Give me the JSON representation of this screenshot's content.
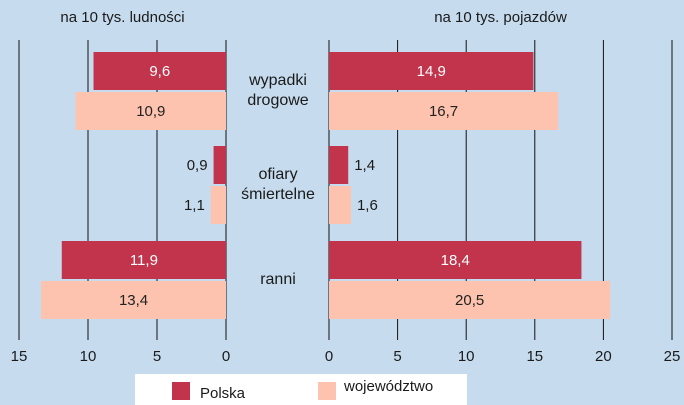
{
  "chart_data": {
    "type": "bar",
    "categories": [
      "wypadki drogowe",
      "ofiary śmiertelne",
      "ranni"
    ],
    "series": [
      {
        "name": "Polska",
        "color": "#c2344c",
        "label_color": "#ffffff"
      },
      {
        "name": "województwo",
        "color": "#fdc3ae",
        "label_color": "#222222"
      }
    ],
    "panels": [
      {
        "title": "na 10 tys. ludności",
        "xlim": [
          15,
          0
        ],
        "xticks": [
          15,
          10,
          5,
          0
        ],
        "values": [
          [
            9.6,
            0.9,
            11.9
          ],
          [
            10.9,
            1.1,
            13.4
          ]
        ],
        "value_labels": [
          [
            "9,6",
            "0,9",
            "11,9"
          ],
          [
            "10,9",
            "1,1",
            "13,4"
          ]
        ]
      },
      {
        "title": "na 10 tys. pojazdów",
        "xlim": [
          0,
          25
        ],
        "xticks": [
          0,
          5,
          10,
          15,
          20,
          25
        ],
        "values": [
          [
            14.9,
            1.4,
            18.4
          ],
          [
            16.7,
            1.6,
            20.5
          ]
        ],
        "value_labels": [
          [
            "14,9",
            "1,4",
            "18,4"
          ],
          [
            "16,7",
            "1,6",
            "20,5"
          ]
        ]
      }
    ]
  }
}
